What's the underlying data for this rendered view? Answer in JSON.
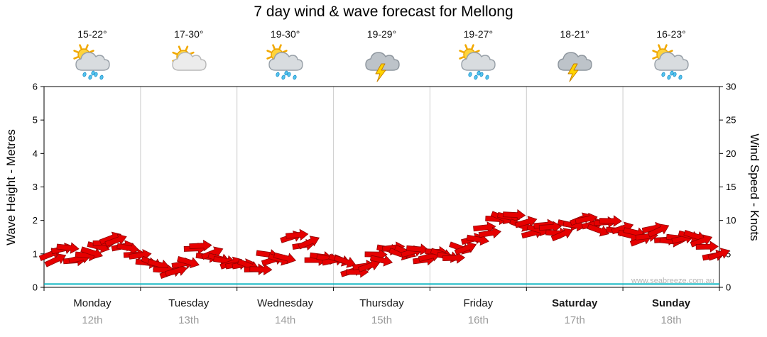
{
  "title": "7 day wind & wave forecast for Mellong",
  "watermark": "www.seabreeze.com.au",
  "axes": {
    "left_label": "Wave Height - Metres",
    "right_label": "Wind Speed - Knots",
    "left_ticks": [
      0,
      1,
      2,
      3,
      4,
      5,
      6
    ],
    "right_ticks": [
      0,
      5,
      10,
      15,
      20,
      25,
      30
    ]
  },
  "days": [
    {
      "name": "Monday",
      "date": "12th",
      "temp": "15-22°",
      "icon": "sun-showers-icon",
      "bold": false
    },
    {
      "name": "Tuesday",
      "date": "13th",
      "temp": "17-30°",
      "icon": "partly-cloudy-icon",
      "bold": false
    },
    {
      "name": "Wednesday",
      "date": "14th",
      "temp": "19-30°",
      "icon": "sun-showers-icon",
      "bold": false
    },
    {
      "name": "Thursday",
      "date": "15th",
      "temp": "19-29°",
      "icon": "thunderstorm-icon",
      "bold": false
    },
    {
      "name": "Friday",
      "date": "16th",
      "temp": "19-27°",
      "icon": "sun-showers-icon",
      "bold": false
    },
    {
      "name": "Saturday",
      "date": "17th",
      "temp": "18-21°",
      "icon": "thunderstorm-icon",
      "bold": true
    },
    {
      "name": "Sunday",
      "date": "18th",
      "temp": "16-23°",
      "icon": "sun-showers-icon",
      "bold": true
    }
  ],
  "chart_data": {
    "type": "area",
    "title": "7 day wind & wave forecast for Mellong",
    "x_categories": [
      "Monday 12th",
      "Tuesday 13th",
      "Wednesday 14th",
      "Thursday 15th",
      "Friday 16th",
      "Saturday 17th",
      "Sunday 18th"
    ],
    "samples_per_day": 8,
    "left_ylabel": "Wave Height - Metres",
    "right_ylabel": "Wind Speed - Knots",
    "left_ylim": [
      0,
      6
    ],
    "right_ylim": [
      0,
      30
    ],
    "grid": "vertical-day-boundaries",
    "legend": "none",
    "series": [
      {
        "name": "Wind Speed (knots)",
        "axis": "right",
        "color": "#E60000",
        "style": "red-wind-arrows",
        "values": [
          4.5,
          5.5,
          4,
          5,
          6.5,
          7,
          6,
          5,
          4,
          3,
          2,
          3.5,
          6,
          5,
          4,
          3.5,
          3.5,
          3,
          4.5,
          4,
          7.5,
          6.5,
          4.5,
          4,
          4,
          2.5,
          3.5,
          4.5,
          5.5,
          5,
          5.5,
          4.5,
          5,
          4.5,
          6,
          7.5,
          8.5,
          10,
          10.5,
          9.5,
          8.5,
          9,
          8,
          9.5,
          10.5,
          9,
          9.5,
          8.5,
          8,
          7.5,
          8.5,
          7,
          7.5,
          8,
          6.5,
          4.5
        ]
      },
      {
        "name": "Wave Height (metres)",
        "axis": "left",
        "color": "#00B2BE",
        "style": "line",
        "values": [
          0.1,
          0.1,
          0.1,
          0.1,
          0.1,
          0.1,
          0.1
        ]
      }
    ]
  },
  "colors": {
    "arrow_fill": "#E60000",
    "arrow_stroke": "#8F0000",
    "wave_line": "#00B2BE",
    "grid_line": "#cccccc",
    "frame": "#000000",
    "date_text": "#9b9b9b"
  }
}
